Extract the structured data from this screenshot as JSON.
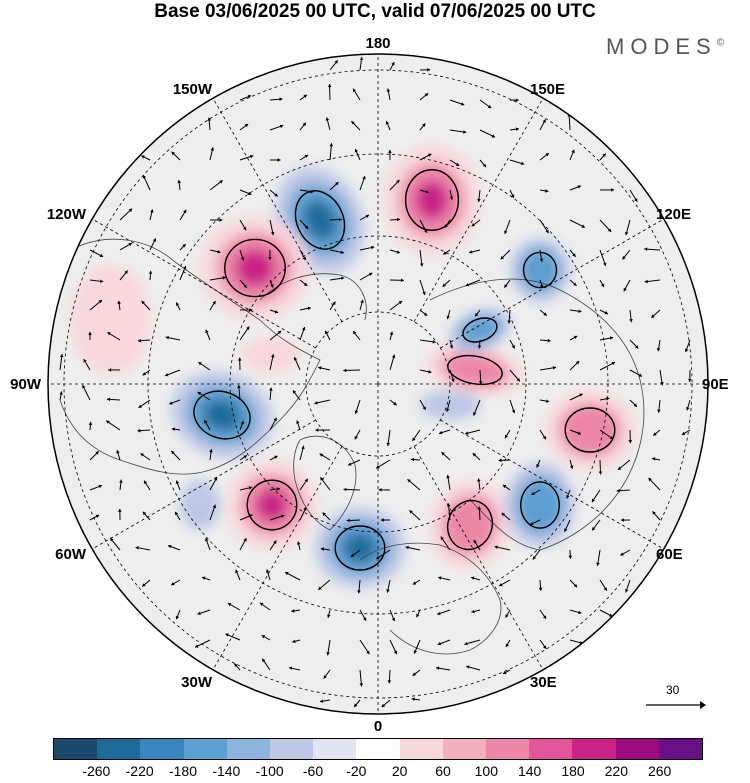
{
  "title": "Base 03/06/2025 00 UTC, valid 07/06/2025 00 UTC",
  "brand": "MODES",
  "brand_mark": "©",
  "longitude_labels": [
    "180",
    "150E",
    "120E",
    "90E",
    "60E",
    "30E",
    "0",
    "30W",
    "60W",
    "90W",
    "120W",
    "150W"
  ],
  "wind_reference": {
    "value": "30"
  },
  "colorbar": {
    "colors": [
      "#1a4a6b",
      "#1f6a99",
      "#3987c0",
      "#5d9fd0",
      "#8db4dd",
      "#bcc8e6",
      "#e3e3f1",
      "#ffffff",
      "#f8d7dd",
      "#f2b0bf",
      "#ec87a8",
      "#e3569b",
      "#cb2385",
      "#9c0a7f",
      "#6a1087"
    ],
    "tick_labels": [
      "-260",
      "-220",
      "-180",
      "-140",
      "-100",
      "-60",
      "-20",
      "20",
      "60",
      "100",
      "140",
      "180",
      "220",
      "260"
    ]
  },
  "anomaly_centers": [
    {
      "sign": "negative",
      "strength": 3
    },
    {
      "sign": "positive",
      "strength": 3
    },
    {
      "sign": "positive",
      "strength": 3
    },
    {
      "sign": "negative",
      "strength": 2
    },
    {
      "sign": "positive",
      "strength": 1
    },
    {
      "sign": "negative",
      "strength": 3
    },
    {
      "sign": "positive",
      "strength": 3
    },
    {
      "sign": "negative",
      "strength": 3
    },
    {
      "sign": "positive",
      "strength": 2
    },
    {
      "sign": "negative",
      "strength": 2
    },
    {
      "sign": "positive",
      "strength": 2
    },
    {
      "sign": "positive",
      "strength": 2
    },
    {
      "sign": "negative",
      "strength": 2
    },
    {
      "sign": "positive",
      "strength": 1
    },
    {
      "sign": "negative",
      "strength": 1
    },
    {
      "sign": "negative",
      "strength": 1
    }
  ]
}
